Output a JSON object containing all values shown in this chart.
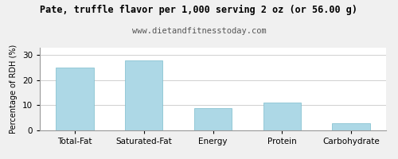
{
  "title": "Pate, truffle flavor per 1,000 serving 2 oz (or 56.00 g)",
  "subtitle": "www.dietandfitnesstoday.com",
  "categories": [
    "Total-Fat",
    "Saturated-Fat",
    "Energy",
    "Protein",
    "Carbohydrate"
  ],
  "values": [
    25.0,
    28.0,
    9.0,
    11.0,
    3.0
  ],
  "bar_color": "#add8e6",
  "bar_edge_color": "#7bbccc",
  "ylabel": "Percentage of RDH (%)",
  "ylim": [
    0,
    33
  ],
  "yticks": [
    0,
    10,
    20,
    30
  ],
  "background_color": "#f0f0f0",
  "plot_bg_color": "#ffffff",
  "title_fontsize": 8.5,
  "subtitle_fontsize": 7.5,
  "ylabel_fontsize": 7,
  "tick_fontsize": 7.5,
  "grid_color": "#d0d0d0",
  "bar_width": 0.55
}
